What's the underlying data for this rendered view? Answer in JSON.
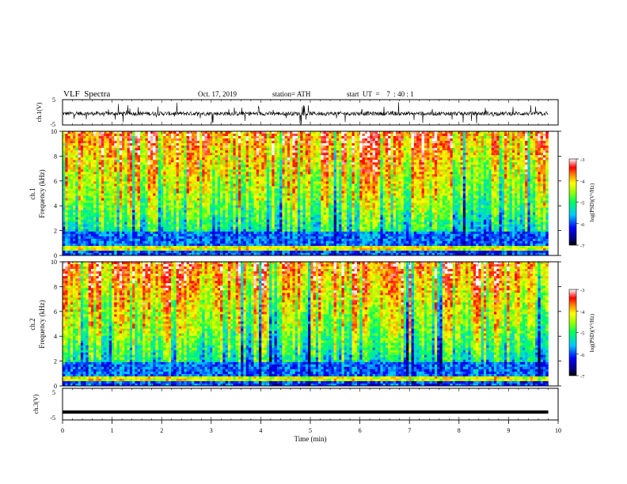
{
  "header": {
    "title": "VLF  Spectra",
    "date": "Oct. 17, 2019",
    "station": "station= ATH",
    "start": "start  UT  =    7  : 40 : 1"
  },
  "chart_data": [
    {
      "type": "line",
      "panel": "ch1-waveform",
      "ylabel": "ch.1(V)",
      "yticks": [
        "5",
        "-5"
      ],
      "ylim": [
        -5,
        5
      ],
      "x_range_min": [
        0,
        10
      ],
      "series": [
        {
          "mean": -0.5,
          "description_values": "noisy signal around -0.5 V with spikes to about ±4 V"
        }
      ]
    },
    {
      "type": "heatmap",
      "panel": "ch1-spectrogram",
      "ylabel_top": "ch.1",
      "ylabel": "Frequency  (kHz)",
      "yticks": [
        "10",
        "8",
        "6",
        "4",
        "2",
        "0"
      ],
      "ylim": [
        0,
        10
      ],
      "xlim": [
        0,
        10
      ],
      "colorbar": {
        "label": "log(PSD)(V²/Hz)",
        "ticks": [
          "-3",
          "-4",
          "-5",
          "-6",
          "-7"
        ],
        "range": [
          -7,
          -3
        ]
      }
    },
    {
      "type": "heatmap",
      "panel": "ch2-spectrogram",
      "ylabel_top": "ch.2",
      "ylabel": "Frequency  (kHz)",
      "yticks": [
        "10",
        "8",
        "6",
        "4",
        "2",
        "0"
      ],
      "ylim": [
        0,
        10
      ],
      "xlim": [
        0,
        10
      ],
      "colorbar": {
        "label": "log(PSD)(V²/Hz)",
        "ticks": [
          "-3",
          "-4",
          "-5",
          "-6",
          "-7"
        ],
        "range": [
          -7,
          -3
        ]
      }
    },
    {
      "type": "line",
      "panel": "ch3-waveform",
      "ylabel": "ch.3(V)",
      "yticks": [
        "5",
        "-5"
      ],
      "ylim": [
        -5,
        5
      ],
      "xlabel": "Time  (min)",
      "xticks": [
        "0",
        "1",
        "2",
        "3",
        "4",
        "5",
        "6",
        "7",
        "8",
        "9",
        "10"
      ],
      "xlim": [
        0,
        10
      ],
      "data_end_min": 9.8,
      "series": [
        {
          "value": -2.5
        }
      ]
    }
  ],
  "colors": {
    "axis": "#000000",
    "background": "#ffffff"
  }
}
